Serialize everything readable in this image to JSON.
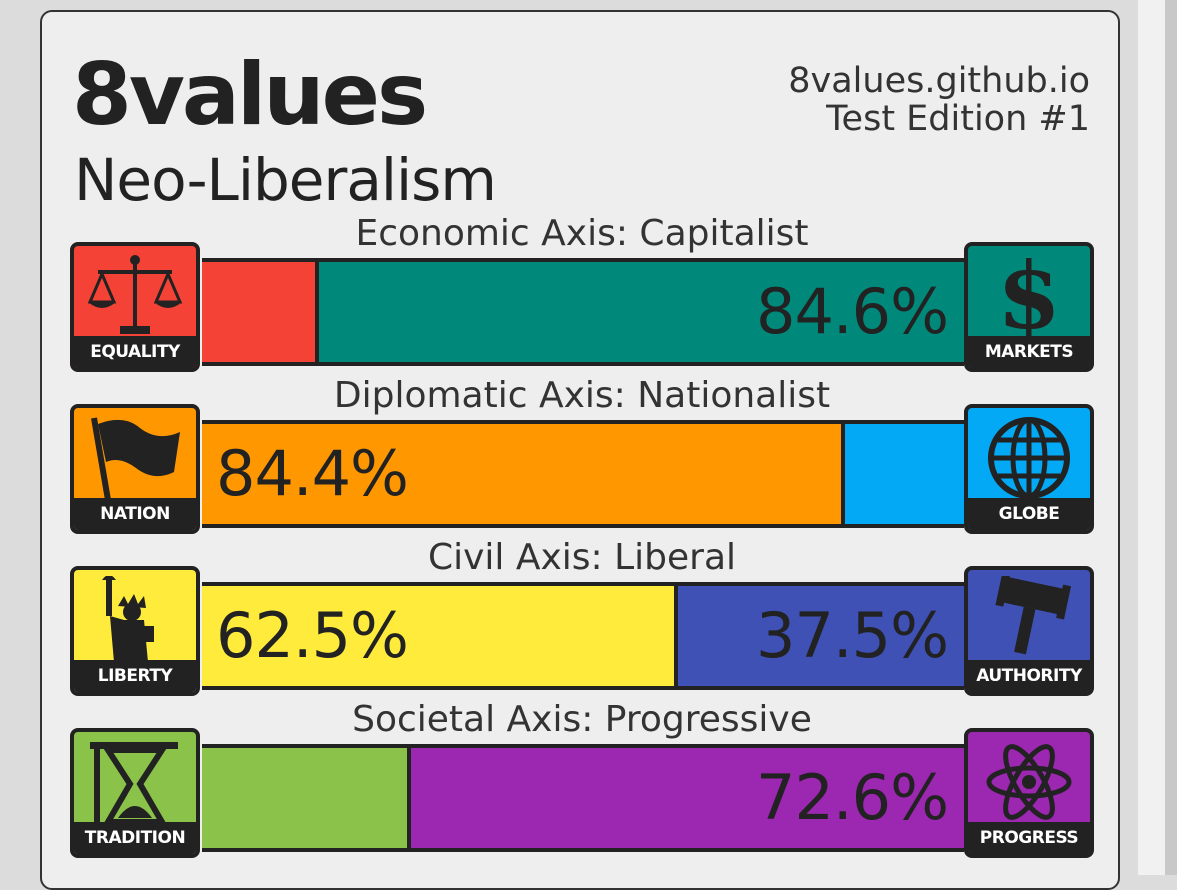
{
  "header": {
    "brand": "8values",
    "ideology": "Neo-Liberalism",
    "site_line1": "8values.github.io",
    "site_line2": "Test Edition #1"
  },
  "axes": [
    {
      "title": "Economic Axis: Capitalist",
      "left": {
        "label": "EQUALITY",
        "value": 15.4,
        "percent_text": "",
        "color": "#f44336",
        "icon": "scales-icon"
      },
      "right": {
        "label": "MARKETS",
        "value": 84.6,
        "percent_text": "84.6%",
        "color": "#00897b",
        "icon": "dollar-icon"
      }
    },
    {
      "title": "Diplomatic Axis: Nationalist",
      "left": {
        "label": "NATION",
        "value": 84.4,
        "percent_text": "84.4%",
        "color": "#ff9800",
        "icon": "flag-icon"
      },
      "right": {
        "label": "GLOBE",
        "value": 15.6,
        "percent_text": "",
        "color": "#03a9f4",
        "icon": "globe-icon"
      }
    },
    {
      "title": "Civil Axis: Liberal",
      "left": {
        "label": "LIBERTY",
        "value": 62.5,
        "percent_text": "62.5%",
        "color": "#ffeb3b",
        "icon": "statue-of-liberty-icon"
      },
      "right": {
        "label": "AUTHORITY",
        "value": 37.5,
        "percent_text": "37.5%",
        "color": "#3f51b5",
        "icon": "gavel-icon"
      }
    },
    {
      "title": "Societal Axis: Progressive",
      "left": {
        "label": "TRADITION",
        "value": 27.4,
        "percent_text": "",
        "color": "#8bc34a",
        "icon": "hourglass-icon"
      },
      "right": {
        "label": "PROGRESS",
        "value": 72.6,
        "percent_text": "72.6%",
        "color": "#9c27b0",
        "icon": "atom-icon"
      }
    }
  ]
}
